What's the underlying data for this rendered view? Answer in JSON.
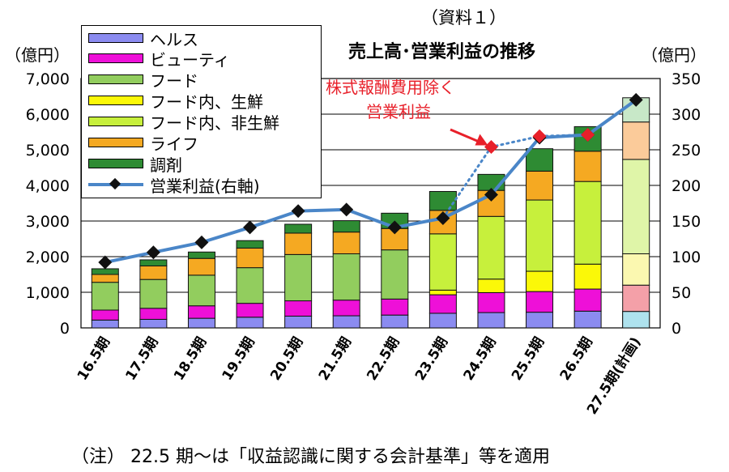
{
  "header": {
    "supertitle": "（資料１）",
    "title": "売上高･営業利益の推移",
    "left_unit": "（億円）",
    "right_unit": "（億円）"
  },
  "annotation": {
    "line1": "株式報酬費用除く",
    "line2": "営業利益"
  },
  "footnote": "（注） 22.5 期～は「収益認識に関する会計基準」等を適用",
  "legend": {
    "items": [
      {
        "label": "ヘルス",
        "color": "#8b8bf0"
      },
      {
        "label": "ビューティ",
        "color": "#ee10d8"
      },
      {
        "label": "フード",
        "color": "#92cd5e"
      },
      {
        "label": "フード内、生鮮",
        "color": "#fbf808"
      },
      {
        "label": "フード内、非生鮮",
        "color": "#c7f03c"
      },
      {
        "label": "ライフ",
        "color": "#f5a922"
      },
      {
        "label": "調剤",
        "color": "#2e8b33"
      }
    ],
    "line_label": "営業利益(右軸)",
    "line_color": "#4a86c8"
  },
  "chart_data": {
    "type": "bar",
    "stacked": true,
    "categories": [
      "16.5期",
      "17.5期",
      "18.5期",
      "19.5期",
      "20.5期",
      "21.5期",
      "22.5期",
      "23.5期",
      "24.5期",
      "25.5期",
      "26.5期",
      "27.5期(計画)"
    ],
    "ylim_left": [
      0,
      7000
    ],
    "yticks_left": [
      "0",
      "1,000",
      "2,000",
      "3,000",
      "4,000",
      "5,000",
      "6,000",
      "7,000"
    ],
    "ylim_right": [
      0,
      350
    ],
    "yticks_right": [
      "0",
      "50",
      "100",
      "150",
      "200",
      "250",
      "300",
      "350"
    ],
    "series": [
      {
        "name": "ヘルス",
        "color": "#8b8bf0",
        "values": [
          220,
          240,
          270,
          300,
          330,
          340,
          360,
          410,
          430,
          440,
          470,
          460
        ]
      },
      {
        "name": "ビューティ",
        "color": "#ee10d8",
        "values": [
          280,
          310,
          350,
          390,
          430,
          440,
          450,
          520,
          560,
          580,
          620,
          0
        ]
      },
      {
        "name": "フード",
        "color": "#92cd5e",
        "values": [
          780,
          810,
          860,
          1000,
          1300,
          1300,
          1380,
          0,
          0,
          0,
          0,
          0
        ]
      },
      {
        "name": "フード内、生鮮",
        "color": "#fbf808",
        "values": [
          0,
          0,
          0,
          0,
          0,
          0,
          0,
          130,
          380,
          570,
          700,
          0
        ]
      },
      {
        "name": "フード内、非生鮮",
        "color": "#c7f03c",
        "values": [
          0,
          0,
          0,
          0,
          0,
          0,
          0,
          1580,
          1760,
          2000,
          2320,
          0
        ]
      },
      {
        "name": "ライフ",
        "color": "#f5a922",
        "values": [
          220,
          380,
          470,
          550,
          600,
          610,
          600,
          660,
          730,
          810,
          850,
          0
        ]
      },
      {
        "name": "調剤",
        "color": "#2e8b33",
        "values": [
          160,
          170,
          180,
          210,
          250,
          320,
          430,
          530,
          450,
          630,
          690,
          0
        ]
      },
      {
        "name": "ヘルス(計画)",
        "color": "#aee2ee",
        "values": [
          0,
          0,
          0,
          0,
          0,
          0,
          0,
          0,
          0,
          0,
          0,
          0
        ]
      },
      {
        "name": "ビューティ(計画)",
        "color": "#f4a0a8",
        "values": [
          0,
          0,
          0,
          0,
          0,
          0,
          0,
          0,
          0,
          0,
          0,
          740
        ]
      },
      {
        "name": "フード内、生鮮(計画)",
        "color": "#fbf8b0",
        "values": [
          0,
          0,
          0,
          0,
          0,
          0,
          0,
          0,
          0,
          0,
          0,
          880
        ]
      },
      {
        "name": "フード内、非生鮮(計画)",
        "color": "#dff5a8",
        "values": [
          0,
          0,
          0,
          0,
          0,
          0,
          0,
          0,
          0,
          0,
          0,
          2650
        ]
      },
      {
        "name": "ライフ(計画)",
        "color": "#fbcb9a",
        "values": [
          0,
          0,
          0,
          0,
          0,
          0,
          0,
          0,
          0,
          0,
          0,
          1050
        ]
      },
      {
        "name": "調剤(計画)",
        "color": "#c8e8c8",
        "values": [
          0,
          0,
          0,
          0,
          0,
          0,
          0,
          0,
          0,
          0,
          0,
          680
        ]
      }
    ],
    "line": {
      "name": "営業利益(右軸)",
      "axis": "right",
      "color": "#4a86c8",
      "values": [
        92,
        106,
        120,
        141,
        164,
        166,
        141,
        154,
        187,
        267,
        271,
        320
      ]
    },
    "excl_stock_comp": {
      "name": "株式報酬費用除く営業利益",
      "color": "#e8202a",
      "points": [
        {
          "category": "24.5期",
          "value": 254
        },
        {
          "category": "25.5期",
          "value": 269
        },
        {
          "category": "26.5期",
          "value": 271
        }
      ]
    }
  }
}
